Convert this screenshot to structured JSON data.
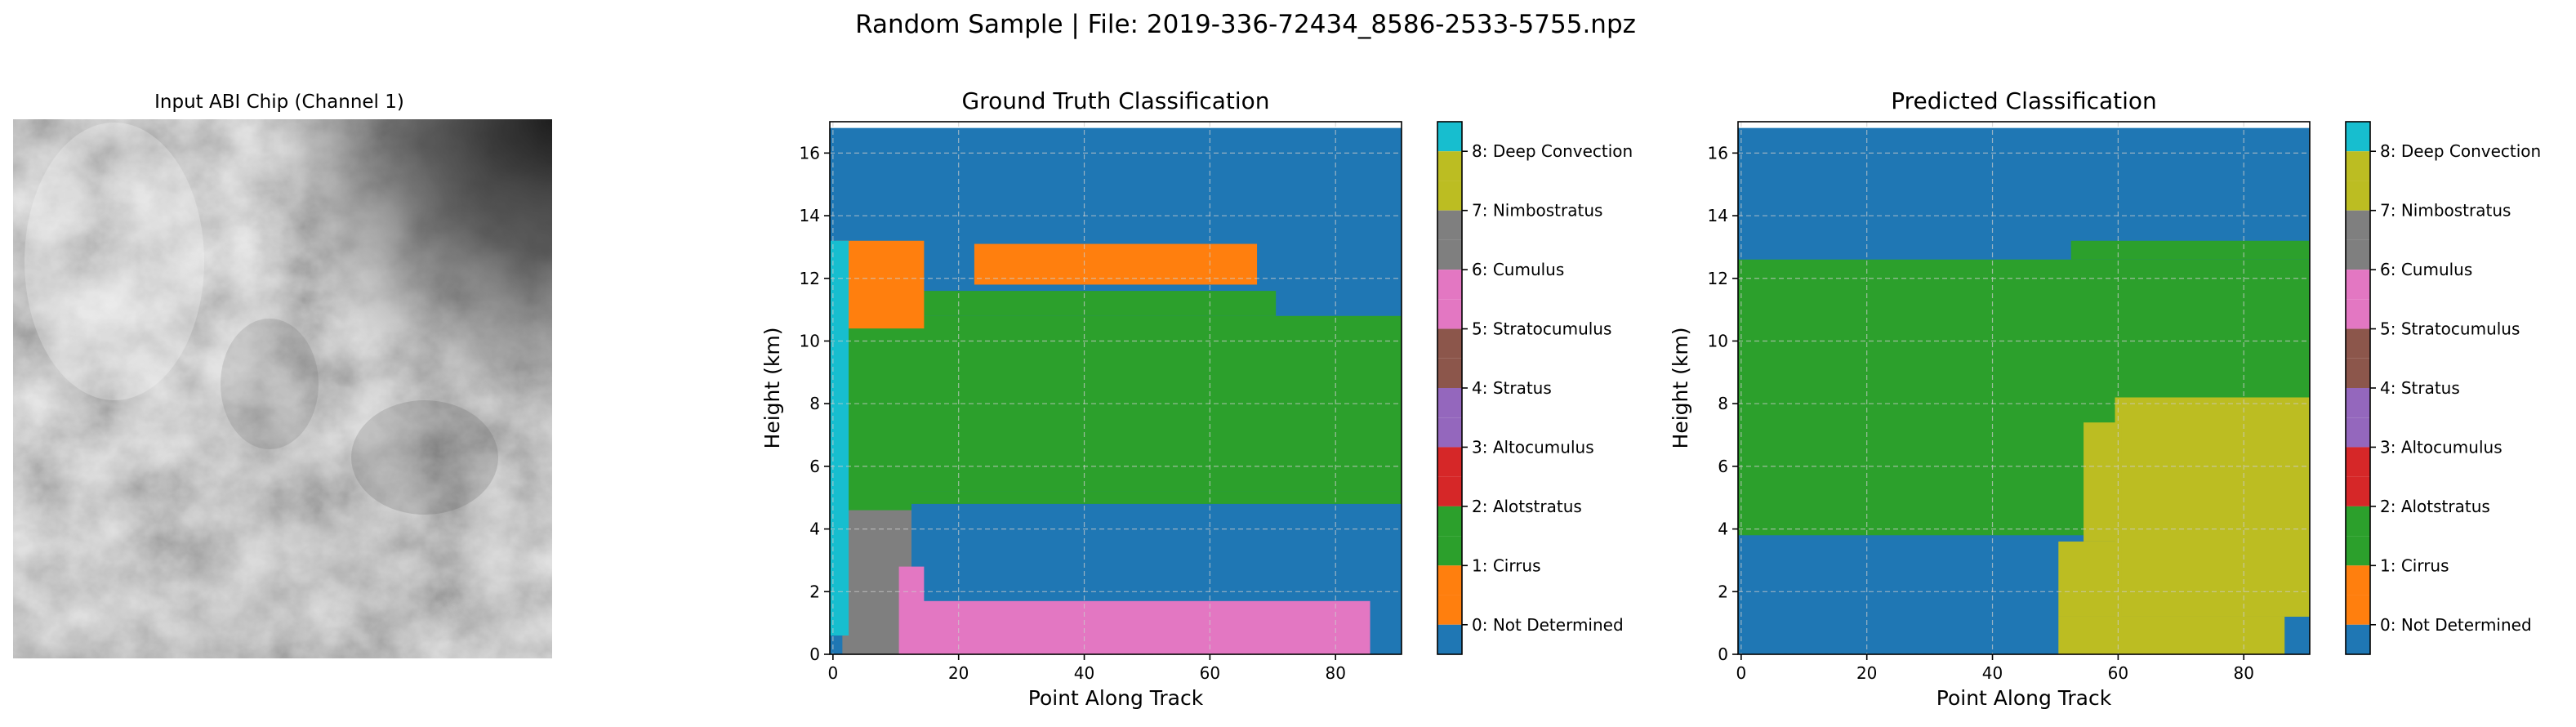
{
  "suptitle": "Random Sample | File: 2019-336-72434_8586-2533-5755.npz",
  "image_panel": {
    "title": "Input ABI Chip (Channel 1)"
  },
  "classes": [
    {
      "id": 0,
      "label": "0: Not Determined",
      "color": "#1f77b4"
    },
    {
      "id": 1,
      "label": "1: Cirrus",
      "color": "#ff7f0e"
    },
    {
      "id": 2,
      "label": "2: Alotstratus",
      "color": "#2ca02c"
    },
    {
      "id": 3,
      "label": "3: Altocumulus",
      "color": "#d62728"
    },
    {
      "id": 4,
      "label": "4: Stratus",
      "color": "#9467bd"
    },
    {
      "id": 5,
      "label": "5: Stratocumulus",
      "color": "#8c564b"
    },
    {
      "id": 6,
      "label": "6: Cumulus",
      "color": "#e377c2"
    },
    {
      "id": 7,
      "label": "7: Nimbostratus",
      "color": "#7f7f7f"
    },
    {
      "id": 8,
      "label": "8: Deep Convection",
      "color": "#bcbd22"
    }
  ],
  "chart_data": [
    {
      "type": "heatmap",
      "title": "Ground Truth Classification",
      "xlabel": "Point Along Track",
      "ylabel": "Height (km)",
      "xlim": [
        -0.5,
        90.5
      ],
      "ylim": [
        0,
        17
      ],
      "xticks": [
        0,
        20,
        40,
        60,
        80
      ],
      "yticks": [
        0,
        2,
        4,
        6,
        8,
        10,
        12,
        14,
        16
      ],
      "grid": true,
      "colorbar": "right",
      "regions": [
        {
          "class": 0,
          "x": [
            0,
            90
          ],
          "y": [
            0,
            16.8
          ]
        },
        {
          "class": 2,
          "x": [
            1,
            90
          ],
          "y": [
            5.2,
            10.8
          ]
        },
        {
          "class": 2,
          "x": [
            1,
            12
          ],
          "y": [
            3.8,
            10.8
          ]
        },
        {
          "class": 2,
          "x": [
            12,
            90
          ],
          "y": [
            4.8,
            5.2
          ]
        },
        {
          "class": 2,
          "x": [
            15,
            70
          ],
          "y": [
            10.8,
            11.6
          ]
        },
        {
          "class": 1,
          "x": [
            1,
            14
          ],
          "y": [
            10.4,
            13.2
          ]
        },
        {
          "class": 1,
          "x": [
            23,
            67
          ],
          "y": [
            11.8,
            13.1
          ]
        },
        {
          "class": 6,
          "x": [
            2,
            12
          ],
          "y": [
            0,
            4.6
          ]
        },
        {
          "class": 7,
          "x": [
            12,
            85
          ],
          "y": [
            0,
            1.7
          ]
        },
        {
          "class": 7,
          "x": [
            11,
            14
          ],
          "y": [
            0,
            2.8
          ]
        },
        {
          "class": 8,
          "x": [
            0,
            2
          ],
          "y": [
            0.6,
            13.2
          ]
        }
      ]
    },
    {
      "type": "heatmap",
      "title": "Predicted Classification",
      "xlabel": "Point Along Track",
      "ylabel": "Height (km)",
      "xlim": [
        -0.5,
        90.5
      ],
      "ylim": [
        0,
        17
      ],
      "xticks": [
        0,
        20,
        40,
        60,
        80
      ],
      "yticks": [
        0,
        2,
        4,
        6,
        8,
        10,
        12,
        14,
        16
      ],
      "grid": true,
      "colorbar": "right",
      "regions": [
        {
          "class": 0,
          "x": [
            0,
            90
          ],
          "y": [
            0,
            16.8
          ]
        },
        {
          "class": 2,
          "x": [
            0,
            90
          ],
          "y": [
            3.8,
            12.6
          ]
        },
        {
          "class": 2,
          "x": [
            53,
            90
          ],
          "y": [
            12.6,
            13.2
          ]
        },
        {
          "class": 8,
          "x": [
            60,
            90
          ],
          "y": [
            1.2,
            8.2
          ]
        },
        {
          "class": 8,
          "x": [
            55,
            60
          ],
          "y": [
            3.6,
            7.4
          ]
        },
        {
          "class": 8,
          "x": [
            51,
            86
          ],
          "y": [
            0,
            1.2
          ]
        },
        {
          "class": 8,
          "x": [
            51,
            60
          ],
          "y": [
            1.2,
            3.6
          ]
        }
      ]
    }
  ]
}
